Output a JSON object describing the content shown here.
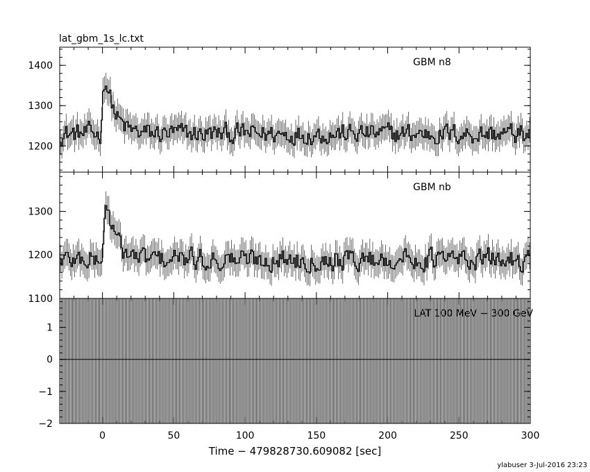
{
  "file_title": "lat_gbm_1s_lc.txt",
  "footer": "ylabuser  3-Jul-2016 23:23",
  "chart_data": {
    "type": "line",
    "shared_x": {
      "label": "Time − 479828730.609082 [sec]",
      "range": [
        -30,
        300
      ],
      "ticks": [
        0,
        50,
        100,
        150,
        200,
        250,
        300
      ],
      "tick_labels": [
        "0",
        "50",
        "100",
        "150",
        "200",
        "250",
        "300"
      ]
    },
    "panels": [
      {
        "id": "n8",
        "label": "GBM n8",
        "ylim": [
          1135,
          1445
        ],
        "yticks": [
          1200,
          1300,
          1400
        ],
        "ytick_labels": [
          "1200",
          "1300",
          "1400"
        ],
        "baseline": 1230,
        "noise": 40,
        "peak": {
          "t": 0,
          "height": 180,
          "decay": 6
        }
      },
      {
        "id": "nb",
        "label": "GBM nb",
        "ylim": [
          1100,
          1390
        ],
        "yticks": [
          1100,
          1200,
          1300
        ],
        "ytick_labels": [
          "1100",
          "1200",
          "1300"
        ],
        "baseline": 1190,
        "noise": 38,
        "peak": {
          "t": 1,
          "height": 160,
          "decay": 6
        }
      },
      {
        "id": "lat",
        "label": "LAT 100 MeV − 300 GeV",
        "ylim": [
          -2,
          1.9
        ],
        "yticks": [
          -2,
          -1,
          0,
          1
        ],
        "ytick_labels": [
          "−2",
          "−1",
          "0",
          "1"
        ],
        "baseline": 0,
        "lat_hatch": true
      }
    ]
  }
}
